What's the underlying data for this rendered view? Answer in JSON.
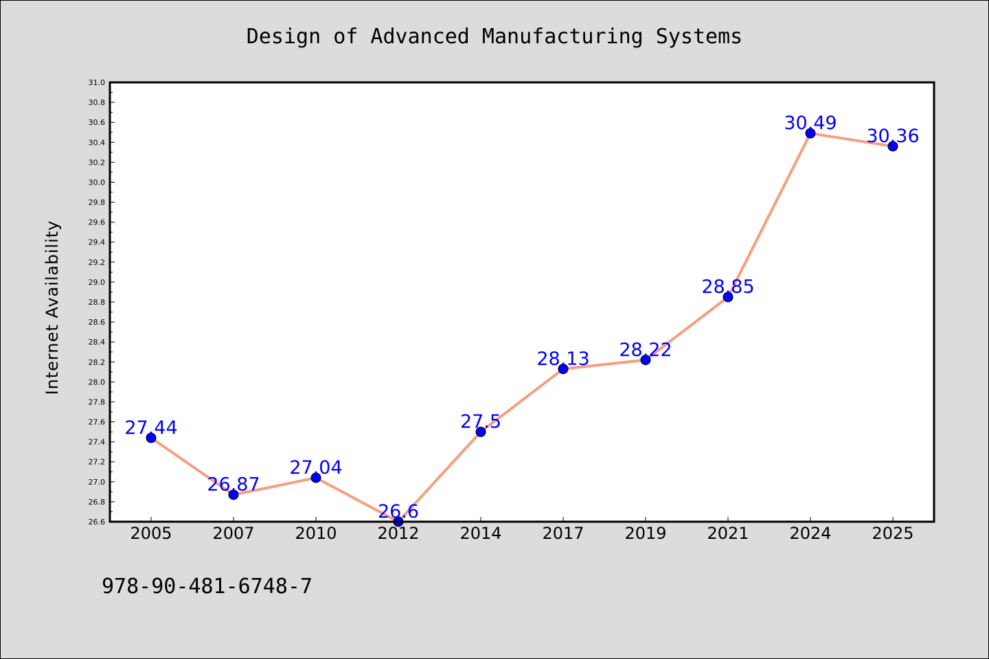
{
  "chart_data": {
    "type": "line",
    "title": "Design of Advanced Manufacturing Systems",
    "xlabel": "",
    "ylabel": "Internet Availability",
    "categories": [
      "2005",
      "2007",
      "2010",
      "2012",
      "2014",
      "2017",
      "2019",
      "2021",
      "2024",
      "2025"
    ],
    "values": [
      27.44,
      26.87,
      27.04,
      26.6,
      27.5,
      28.13,
      28.22,
      28.85,
      30.49,
      30.36
    ],
    "data_labels": [
      "27.44",
      "26.87",
      "27.04",
      "26.6",
      "27.5",
      "28.13",
      "28.22",
      "28.85",
      "30.49",
      "30.36"
    ],
    "ylim": [
      26.6,
      31.0
    ],
    "yticks": [
      "26.6",
      "26.8",
      "27.0",
      "27.2",
      "27.4",
      "27.6",
      "27.8",
      "28.0",
      "28.2",
      "28.4",
      "28.6",
      "28.8",
      "29.0",
      "29.2",
      "29.4",
      "29.6",
      "29.8",
      "30.0",
      "30.2",
      "30.4",
      "30.6",
      "30.8",
      "31.0"
    ],
    "grid": false,
    "line_color": "#f4a080",
    "marker_color": "#0000ff",
    "label_color": "#0000ff"
  },
  "footer": {
    "isbn": "978-90-481-6748-7"
  }
}
